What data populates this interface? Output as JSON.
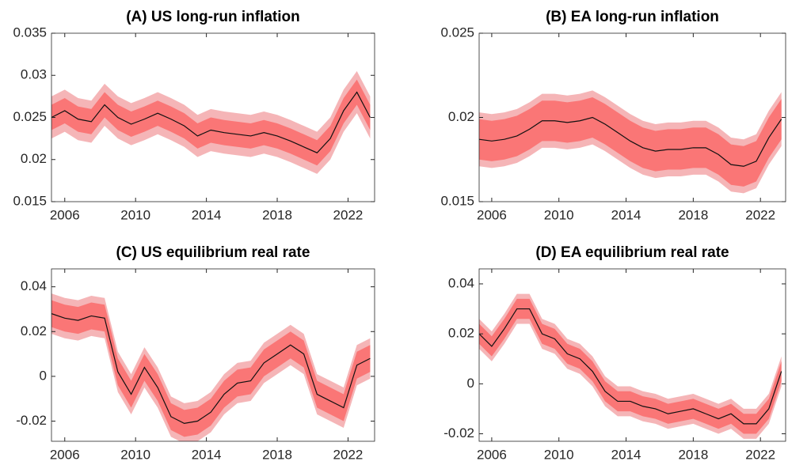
{
  "chart_data": [
    {
      "type": "band-line",
      "title": "(A) US long-run inflation",
      "x": [
        2005.25,
        2006,
        2006.75,
        2007.5,
        2008.25,
        2009,
        2009.75,
        2010.5,
        2011.25,
        2012,
        2012.75,
        2013.5,
        2014.25,
        2015,
        2015.75,
        2016.5,
        2017.25,
        2018,
        2018.75,
        2019.5,
        2020.25,
        2021,
        2021.75,
        2022.5,
        2023.25
      ],
      "xlim": [
        2005.25,
        2023.5
      ],
      "xticks": [
        2006,
        2010,
        2014,
        2018,
        2022
      ],
      "ylim": [
        0.015,
        0.035
      ],
      "yticks": [
        0.015,
        0.02,
        0.025,
        0.03,
        0.035
      ],
      "bands": [
        {
          "color": "#f5b5b7",
          "lower": [
            0.0225,
            0.0233,
            0.0223,
            0.022,
            0.024,
            0.0225,
            0.0217,
            0.0223,
            0.023,
            0.0223,
            0.0215,
            0.0203,
            0.021,
            0.0207,
            0.0205,
            0.0203,
            0.0207,
            0.0203,
            0.0197,
            0.019,
            0.0183,
            0.02,
            0.0233,
            0.0255,
            0.0225
          ],
          "upper": [
            0.0275,
            0.0283,
            0.0273,
            0.027,
            0.029,
            0.0275,
            0.0267,
            0.0273,
            0.028,
            0.0273,
            0.0265,
            0.0253,
            0.026,
            0.0257,
            0.0255,
            0.0253,
            0.0257,
            0.0253,
            0.0247,
            0.024,
            0.0233,
            0.025,
            0.0283,
            0.0305,
            0.0275
          ]
        },
        {
          "color": "#fa7676",
          "lower": [
            0.0235,
            0.0243,
            0.0233,
            0.023,
            0.025,
            0.0235,
            0.0227,
            0.0233,
            0.024,
            0.0233,
            0.0225,
            0.0213,
            0.022,
            0.0217,
            0.0215,
            0.0213,
            0.0217,
            0.0213,
            0.0207,
            0.02,
            0.0193,
            0.021,
            0.0243,
            0.0265,
            0.0235
          ],
          "upper": [
            0.0265,
            0.0273,
            0.0263,
            0.026,
            0.028,
            0.0265,
            0.0257,
            0.0263,
            0.027,
            0.0263,
            0.0255,
            0.0243,
            0.025,
            0.0247,
            0.0245,
            0.0243,
            0.0247,
            0.0243,
            0.0237,
            0.023,
            0.0223,
            0.024,
            0.0273,
            0.0295,
            0.0265
          ]
        }
      ],
      "line": {
        "color": "#111111",
        "values": [
          0.025,
          0.0258,
          0.0248,
          0.0245,
          0.0265,
          0.025,
          0.0242,
          0.0248,
          0.0255,
          0.0248,
          0.024,
          0.0228,
          0.0235,
          0.0232,
          0.023,
          0.0228,
          0.0232,
          0.0228,
          0.0222,
          0.0215,
          0.0208,
          0.0225,
          0.0258,
          0.028,
          0.025
        ]
      }
    },
    {
      "type": "band-line",
      "title": "(B) EA long-run inflation",
      "x": [
        2005.25,
        2006,
        2006.75,
        2007.5,
        2008.25,
        2009,
        2009.75,
        2010.5,
        2011.25,
        2012,
        2012.75,
        2013.5,
        2014.25,
        2015,
        2015.75,
        2016.5,
        2017.25,
        2018,
        2018.75,
        2019.5,
        2020.25,
        2021,
        2021.75,
        2022.5,
        2023.25
      ],
      "xlim": [
        2005.25,
        2023.5
      ],
      "xticks": [
        2006,
        2010,
        2014,
        2018,
        2022
      ],
      "ylim": [
        0.015,
        0.025
      ],
      "yticks": [
        0.015,
        0.02,
        0.025
      ],
      "bands": [
        {
          "color": "#f5b5b7",
          "lower": [
            0.0171,
            0.017,
            0.0171,
            0.0173,
            0.0177,
            0.0182,
            0.0182,
            0.0181,
            0.0182,
            0.0184,
            0.018,
            0.0175,
            0.017,
            0.0166,
            0.0164,
            0.0165,
            0.0165,
            0.0166,
            0.0166,
            0.0162,
            0.0156,
            0.0155,
            0.0158,
            0.0172,
            0.0183
          ],
          "upper": [
            0.0203,
            0.0202,
            0.0203,
            0.0205,
            0.0209,
            0.0214,
            0.0214,
            0.0213,
            0.0214,
            0.0216,
            0.0212,
            0.0207,
            0.0202,
            0.0198,
            0.0196,
            0.0197,
            0.0197,
            0.0198,
            0.0198,
            0.0194,
            0.0188,
            0.0187,
            0.019,
            0.0204,
            0.0215
          ]
        },
        {
          "color": "#fa7676",
          "lower": [
            0.0175,
            0.0174,
            0.0175,
            0.0177,
            0.0181,
            0.0186,
            0.0186,
            0.0185,
            0.0186,
            0.0188,
            0.0184,
            0.0179,
            0.0174,
            0.017,
            0.0168,
            0.0169,
            0.0169,
            0.017,
            0.017,
            0.0166,
            0.016,
            0.0159,
            0.0162,
            0.0176,
            0.0187
          ],
          "upper": [
            0.0199,
            0.0198,
            0.0199,
            0.0201,
            0.0205,
            0.021,
            0.021,
            0.0209,
            0.021,
            0.0212,
            0.0208,
            0.0203,
            0.0198,
            0.0194,
            0.0192,
            0.0193,
            0.0193,
            0.0194,
            0.0194,
            0.019,
            0.0184,
            0.0183,
            0.0186,
            0.02,
            0.0211
          ]
        }
      ],
      "line": {
        "color": "#111111",
        "values": [
          0.0187,
          0.0186,
          0.0187,
          0.0189,
          0.0193,
          0.0198,
          0.0198,
          0.0197,
          0.0198,
          0.02,
          0.0196,
          0.0191,
          0.0186,
          0.0182,
          0.018,
          0.0181,
          0.0181,
          0.0182,
          0.0182,
          0.0178,
          0.0172,
          0.0171,
          0.0174,
          0.0188,
          0.0199
        ]
      }
    },
    {
      "type": "band-line",
      "title": "(C) US equilibrium real rate",
      "x": [
        2005.25,
        2006,
        2006.75,
        2007.5,
        2008.25,
        2009,
        2009.75,
        2010.5,
        2011.25,
        2012,
        2012.75,
        2013.5,
        2014.25,
        2015,
        2015.75,
        2016.5,
        2017.25,
        2018,
        2018.75,
        2019.5,
        2020.25,
        2021,
        2021.75,
        2022.5,
        2023.25
      ],
      "xlim": [
        2005.25,
        2023.5
      ],
      "xticks": [
        2006,
        2010,
        2014,
        2018,
        2022
      ],
      "ylim": [
        -0.029,
        0.048
      ],
      "yticks": [
        -0.02,
        0,
        0.02,
        0.04
      ],
      "bands": [
        {
          "color": "#f5b5b7",
          "lower": [
            0.019,
            0.017,
            0.016,
            0.018,
            0.017,
            -0.007,
            -0.017,
            -0.005,
            -0.014,
            -0.027,
            -0.03,
            -0.029,
            -0.025,
            -0.017,
            -0.012,
            -0.011,
            -0.003,
            0.001,
            0.005,
            0.001,
            -0.017,
            -0.02,
            -0.023,
            -0.004,
            -0.001
          ],
          "upper": [
            0.037,
            0.035,
            0.034,
            0.036,
            0.035,
            0.011,
            0.001,
            0.013,
            0.004,
            -0.009,
            -0.012,
            -0.011,
            -0.007,
            0.001,
            0.006,
            0.007,
            0.015,
            0.019,
            0.023,
            0.019,
            0.001,
            -0.002,
            -0.005,
            0.014,
            0.017
          ]
        },
        {
          "color": "#fa7676",
          "lower": [
            0.022,
            0.02,
            0.019,
            0.021,
            0.02,
            -0.004,
            -0.014,
            -0.002,
            -0.011,
            -0.024,
            -0.027,
            -0.026,
            -0.022,
            -0.014,
            -0.009,
            -0.008,
            0,
            0.004,
            0.008,
            0.004,
            -0.014,
            -0.017,
            -0.02,
            -0.001,
            0.002
          ],
          "upper": [
            0.034,
            0.032,
            0.031,
            0.033,
            0.032,
            0.008,
            -0.002,
            0.01,
            0.001,
            -0.012,
            -0.015,
            -0.014,
            -0.01,
            -0.002,
            0.003,
            0.004,
            0.012,
            0.016,
            0.02,
            0.016,
            -0.002,
            -0.005,
            -0.008,
            0.011,
            0.014
          ]
        }
      ],
      "line": {
        "color": "#111111",
        "values": [
          0.028,
          0.026,
          0.025,
          0.027,
          0.026,
          0.002,
          -0.008,
          0.004,
          -0.005,
          -0.018,
          -0.021,
          -0.02,
          -0.016,
          -0.008,
          -0.003,
          -0.002,
          0.006,
          0.01,
          0.014,
          0.01,
          -0.008,
          -0.011,
          -0.014,
          0.005,
          0.008
        ]
      }
    },
    {
      "type": "band-line",
      "title": "(D) EA equilibrium real rate",
      "x": [
        2005.25,
        2006,
        2006.75,
        2007.5,
        2008.25,
        2009,
        2009.75,
        2010.5,
        2011.25,
        2012,
        2012.75,
        2013.5,
        2014.25,
        2015,
        2015.75,
        2016.5,
        2017.25,
        2018,
        2018.75,
        2019.5,
        2020.25,
        2021,
        2021.75,
        2022.5,
        2023.25
      ],
      "xlim": [
        2005.25,
        2023.5
      ],
      "xticks": [
        2006,
        2010,
        2014,
        2018,
        2022
      ],
      "ylim": [
        -0.023,
        0.046
      ],
      "yticks": [
        -0.02,
        0,
        0.02,
        0.04
      ],
      "bands": [
        {
          "color": "#f5b5b7",
          "lower": [
            0.014,
            0.009,
            0.016,
            0.024,
            0.024,
            0.014,
            0.012,
            0.006,
            0.004,
            -0.001,
            -0.009,
            -0.013,
            -0.013,
            -0.015,
            -0.016,
            -0.018,
            -0.017,
            -0.016,
            -0.018,
            -0.02,
            -0.018,
            -0.022,
            -0.022,
            -0.016,
            -0.001
          ],
          "upper": [
            0.026,
            0.021,
            0.028,
            0.036,
            0.036,
            0.026,
            0.024,
            0.018,
            0.016,
            0.011,
            0.003,
            -0.001,
            -0.001,
            -0.003,
            -0.004,
            -0.006,
            -0.005,
            -0.004,
            -0.006,
            -0.008,
            -0.006,
            -0.01,
            -0.01,
            -0.004,
            0.011
          ]
        },
        {
          "color": "#fa7676",
          "lower": [
            0.016,
            0.011,
            0.018,
            0.026,
            0.026,
            0.016,
            0.014,
            0.008,
            0.006,
            0.001,
            -0.007,
            -0.011,
            -0.011,
            -0.013,
            -0.014,
            -0.016,
            -0.015,
            -0.014,
            -0.016,
            -0.018,
            -0.016,
            -0.02,
            -0.02,
            -0.014,
            0.001
          ],
          "upper": [
            0.024,
            0.019,
            0.026,
            0.034,
            0.034,
            0.024,
            0.022,
            0.016,
            0.014,
            0.009,
            0.001,
            -0.003,
            -0.003,
            -0.005,
            -0.006,
            -0.008,
            -0.007,
            -0.006,
            -0.008,
            -0.01,
            -0.008,
            -0.012,
            -0.012,
            -0.006,
            0.009
          ]
        }
      ],
      "line": {
        "color": "#111111",
        "values": [
          0.02,
          0.015,
          0.022,
          0.03,
          0.03,
          0.02,
          0.018,
          0.012,
          0.01,
          0.005,
          -0.003,
          -0.007,
          -0.007,
          -0.009,
          -0.01,
          -0.012,
          -0.011,
          -0.01,
          -0.012,
          -0.014,
          -0.012,
          -0.016,
          -0.016,
          -0.01,
          0.005
        ]
      }
    }
  ]
}
